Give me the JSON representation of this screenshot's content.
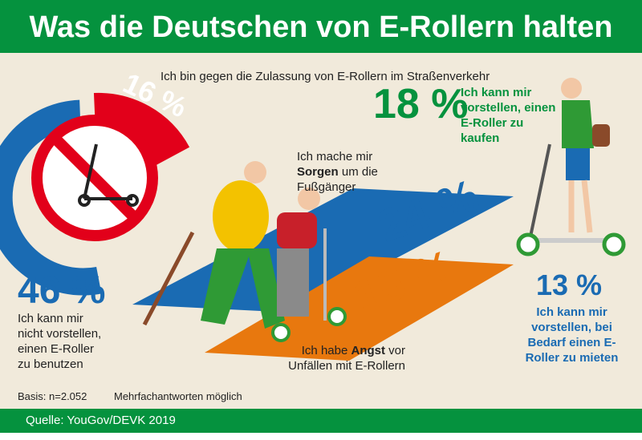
{
  "title": "Was die Deutschen von E-Rollern halten",
  "stats": [
    {
      "value": "16 %",
      "text": "Ich bin gegen die Zulassung von E-Rollern im Straßenverkehr",
      "color": "#e2001a"
    },
    {
      "value": "46 %",
      "text": "Ich kann mir nicht vorstellen, einen E-Roller zu benutzen",
      "color": "#1a6bb3"
    },
    {
      "value": "24 %",
      "text_pre": "Ich mache mir ",
      "text_bold": "Sorgen",
      "text_post": " um die Fußgänger",
      "color": "#1a6bb3"
    },
    {
      "value": "15 %",
      "text_pre": "Ich habe ",
      "text_bold": "Angst",
      "text_post": " vor Unfällen mit E-Rollern",
      "color": "#e8780e"
    },
    {
      "value": "18 %",
      "text": "Ich kann mir vorstellen, einen E-Roller zu kaufen",
      "color": "#05923e"
    },
    {
      "value": "13 %",
      "text": "Ich kann mir vorstellen, bei Bedarf einen E-Roller zu mieten",
      "color": "#1a6bb3"
    }
  ],
  "basis": "Basis: n=2.052",
  "note": "Mehrfachantworten möglich",
  "source": "Quelle: YouGov/DEVK 2019"
}
